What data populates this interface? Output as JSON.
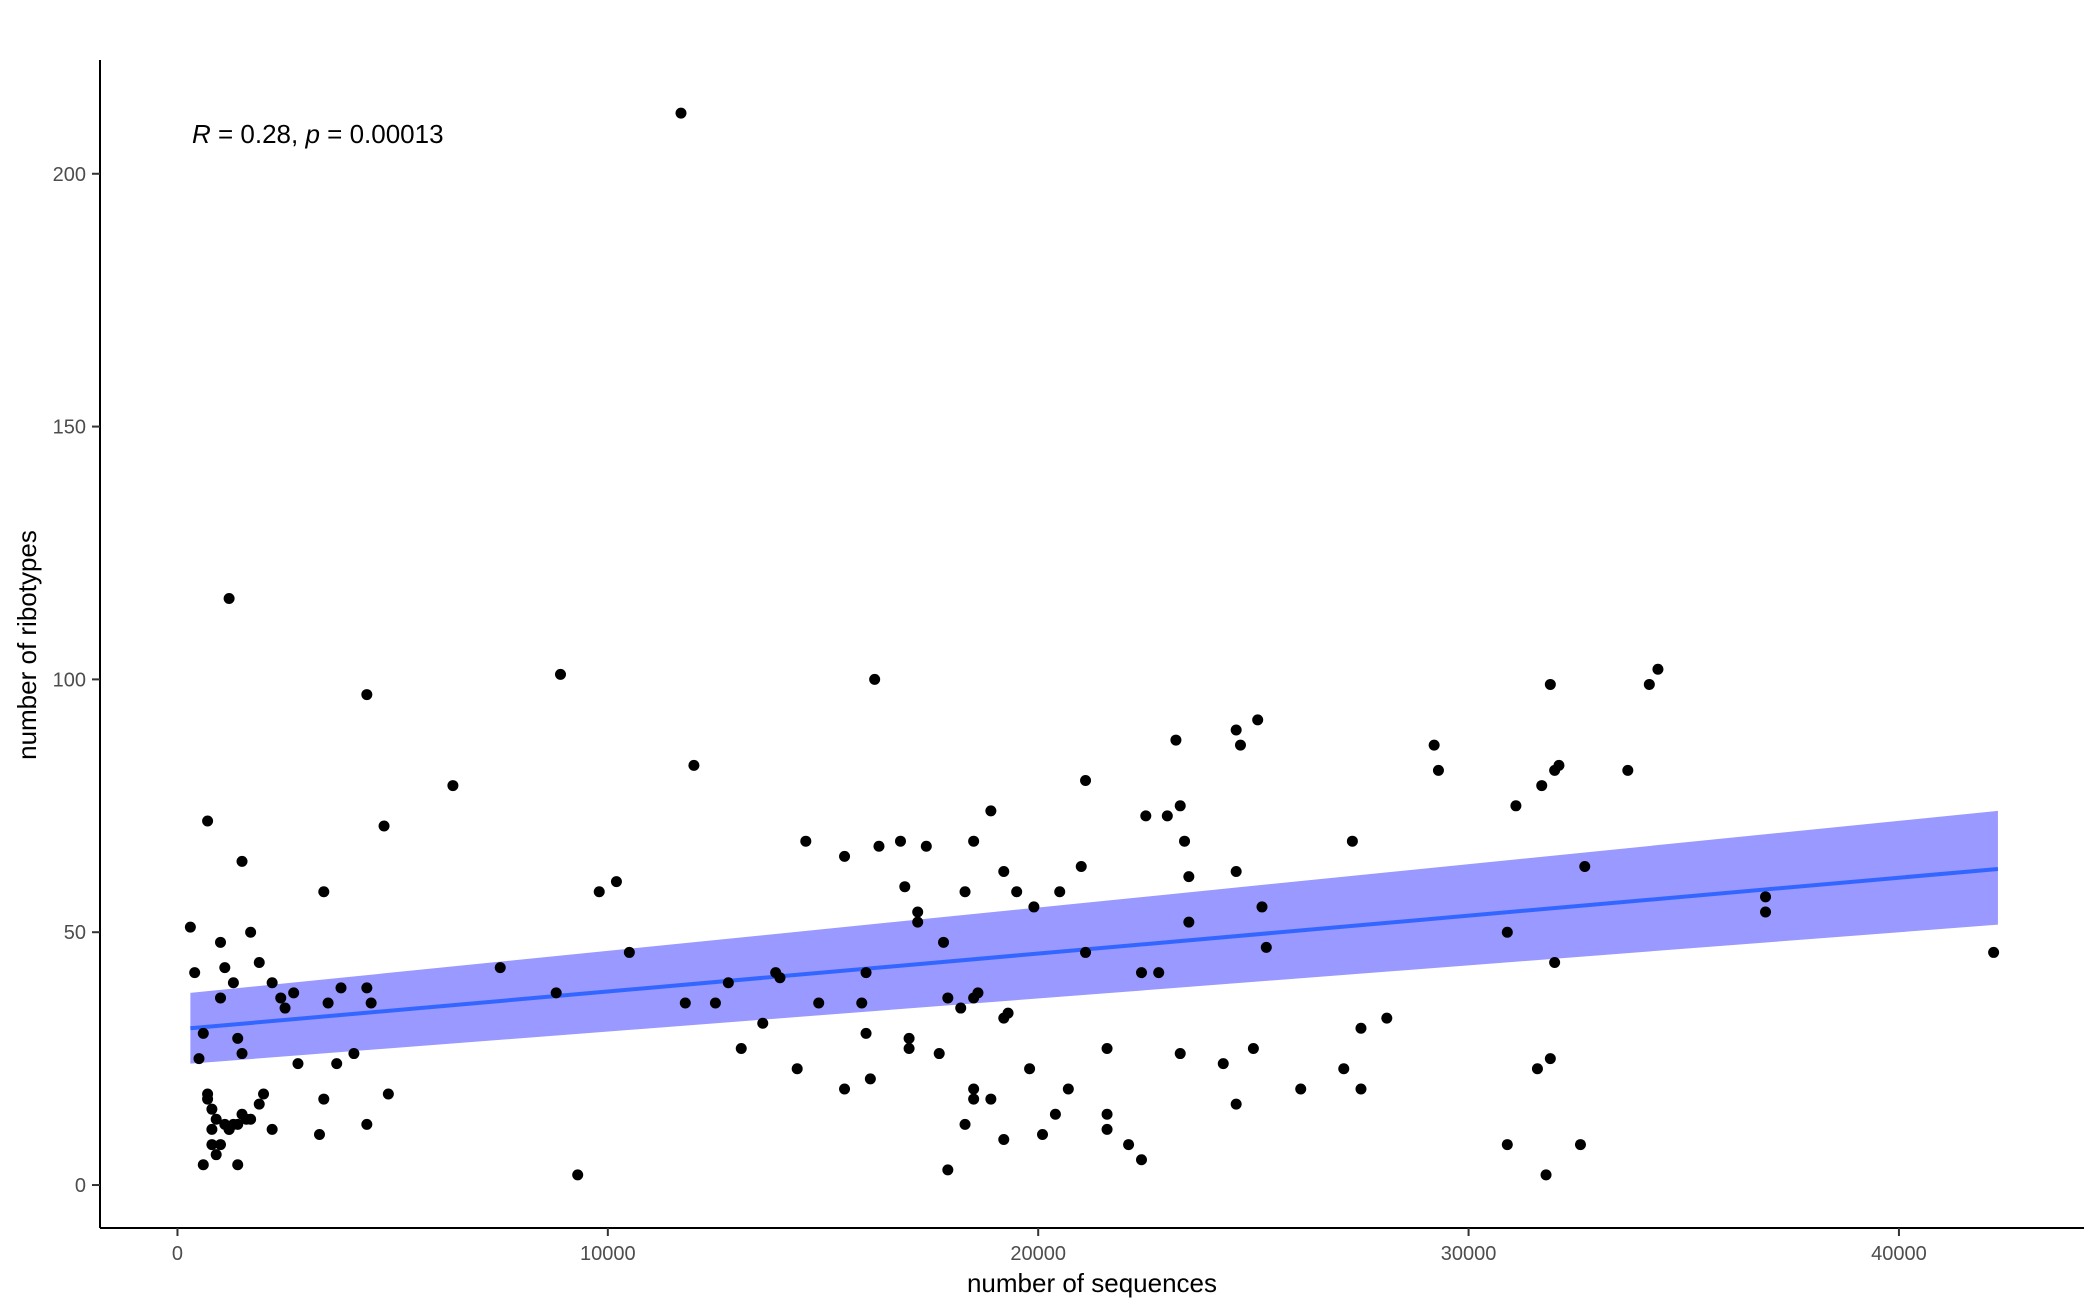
{
  "chart_data": {
    "type": "scatter",
    "xlabel": "number of sequences",
    "ylabel": "number of ribotypes",
    "xlim": [
      -1800,
      44300
    ],
    "ylim": [
      -8.5,
      222.5
    ],
    "xticks": [
      0,
      10000,
      20000,
      30000,
      40000
    ],
    "xtick_labels": [
      "0",
      "10000",
      "20000",
      "30000",
      "40000"
    ],
    "yticks": [
      0,
      50,
      100,
      150,
      200
    ],
    "ytick_labels": [
      "0",
      "50",
      "100",
      "150",
      "200"
    ],
    "grid": false,
    "annotation": {
      "r_symbol": "R",
      "r_text": " = 0.28, ",
      "p_symbol": "p",
      "p_text": " = 0.00013"
    },
    "colors": {
      "points": "#000000",
      "fit_line": "#3366ff",
      "ci_band": "#9999ff",
      "axis": "#000000",
      "tick_labels": "#4d4d4d"
    },
    "fit": {
      "x": [
        300,
        42300
      ],
      "y": [
        31,
        62.5
      ],
      "ci_lower": [
        24,
        51.5
      ],
      "ci_upper": [
        38,
        74
      ]
    },
    "points": {
      "x": [
        11700,
        1200,
        4400,
        16200,
        8900,
        34400,
        34200,
        31900,
        25100,
        24600,
        24700,
        29200,
        29300,
        23200,
        23300,
        12000,
        21100,
        32100,
        32000,
        33700,
        31700,
        31100,
        6400,
        4800,
        700,
        18900,
        22500,
        23000,
        32700,
        15500,
        14600,
        16800,
        16300,
        17400,
        18500,
        27300,
        23400,
        23500,
        24600,
        21000,
        10200,
        9800,
        16900,
        17200,
        17200,
        18300,
        19200,
        19500,
        20500,
        19900,
        3400,
        10500,
        30900,
        36900,
        36900,
        25200,
        25300,
        1500,
        1700,
        400,
        2700,
        21100,
        23500,
        42200,
        32000,
        17800,
        13900,
        14000,
        12800,
        14900,
        7500,
        2200,
        1400,
        2800,
        1500,
        2400,
        3800,
        4400,
        4500,
        3500,
        2500,
        8800,
        11800,
        12500,
        15900,
        16000,
        17900,
        18500,
        18600,
        19200,
        19300,
        18200,
        22400,
        22800,
        13600,
        16000,
        17000,
        17000,
        27500,
        28100,
        1000,
        1100,
        1000,
        300,
        1300,
        500,
        600,
        2000,
        4100,
        3700,
        13100,
        23300,
        25000,
        24300,
        21600,
        14400,
        17700,
        15500,
        16100,
        19800,
        27100,
        26100,
        27500,
        31600,
        31900,
        1900,
        4900,
        3400,
        700,
        700,
        800,
        900,
        1100,
        1200,
        1300,
        1400,
        1500,
        1600,
        1700,
        4400,
        3300,
        2200,
        1200,
        1900,
        18900,
        24600,
        18500,
        21600,
        18300,
        20400,
        20700,
        20100,
        21600,
        22100,
        22400,
        19200,
        18500,
        800,
        800,
        900,
        1000,
        600,
        1400,
        17900,
        9300,
        31800,
        30900,
        32600
      ],
      "y": [
        212,
        116,
        97,
        100,
        101,
        102,
        99,
        99,
        92,
        90,
        87,
        87,
        82,
        88,
        75,
        83,
        80,
        83,
        82,
        82,
        79,
        75,
        79,
        71,
        72,
        74,
        73,
        73,
        63,
        65,
        68,
        68,
        67,
        67,
        68,
        68,
        68,
        61,
        62,
        63,
        60,
        58,
        59,
        54,
        52,
        58,
        62,
        58,
        58,
        55,
        58,
        46,
        50,
        57,
        54,
        55,
        47,
        64,
        50,
        42,
        38,
        46,
        52,
        46,
        44,
        48,
        42,
        41,
        40,
        36,
        43,
        40,
        29,
        24,
        26,
        37,
        39,
        39,
        36,
        36,
        35,
        38,
        36,
        36,
        36,
        42,
        37,
        37,
        38,
        33,
        34,
        35,
        42,
        42,
        32,
        30,
        29,
        27,
        31,
        33,
        48,
        43,
        37,
        51,
        40,
        25,
        30,
        18,
        26,
        24,
        27,
        26,
        27,
        24,
        27,
        23,
        26,
        19,
        21,
        23,
        23,
        19,
        19,
        23,
        25,
        44,
        18,
        17,
        17,
        18,
        15,
        13,
        12,
        11,
        12,
        12,
        14,
        13,
        13,
        12,
        10,
        11,
        11,
        16,
        17,
        16,
        19,
        14,
        12,
        14,
        19,
        10,
        11,
        8,
        5,
        9,
        17,
        11,
        8,
        6,
        8,
        4,
        4,
        3,
        2,
        2,
        8,
        8
      ]
    }
  }
}
